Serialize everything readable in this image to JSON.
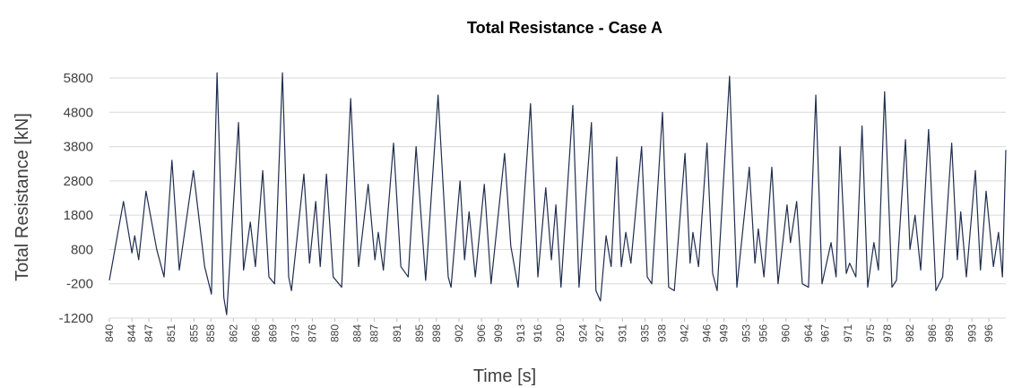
{
  "chart_data": {
    "type": "line",
    "title": "Total Resistance - Case A",
    "x_label": "Time [s]",
    "y_label": "Total Resistance [kN]",
    "grid": true,
    "xlim": [
      840,
      999
    ],
    "ylim": [
      -1200,
      5800
    ],
    "yticks": [
      -1200,
      -200,
      800,
      1800,
      2800,
      3800,
      4800,
      5800
    ],
    "xticks": [
      840,
      844,
      847,
      851,
      855,
      858,
      862,
      866,
      869,
      873,
      876,
      880,
      884,
      887,
      891,
      895,
      898,
      902,
      906,
      909,
      913,
      916,
      920,
      924,
      927,
      931,
      935,
      938,
      942,
      946,
      949,
      953,
      956,
      960,
      964,
      967,
      971,
      975,
      978,
      982,
      986,
      989,
      993,
      996
    ],
    "x": [
      840.0,
      842.5,
      844.0,
      844.5,
      845.2,
      846.5,
      848.4,
      849.7,
      851.1,
      852.4,
      854.9,
      856.9,
      858.1,
      859.1,
      860.3,
      860.8,
      862.9,
      863.8,
      865.0,
      865.9,
      867.2,
      868.3,
      869.3,
      870.7,
      871.8,
      872.3,
      874.5,
      875.5,
      876.6,
      877.4,
      878.5,
      879.7,
      881.2,
      882.8,
      884.2,
      885.9,
      887.1,
      887.7,
      888.6,
      890.4,
      891.7,
      893.0,
      894.4,
      896.1,
      898.3,
      900.1,
      900.6,
      902.2,
      903.0,
      903.8,
      904.9,
      906.5,
      907.7,
      910.1,
      911.2,
      912.5,
      914.7,
      916.0,
      917.4,
      918.4,
      919.2,
      920.1,
      922.2,
      923.3,
      925.5,
      926.3,
      927.1,
      928.1,
      929.0,
      930.0,
      930.8,
      931.6,
      932.5,
      934.4,
      935.4,
      936.2,
      938.1,
      939.2,
      940.2,
      942.1,
      943.0,
      943.5,
      944.5,
      946.0,
      947.0,
      947.8,
      950.0,
      951.3,
      953.5,
      954.5,
      955.1,
      956.1,
      957.5,
      958.6,
      960.2,
      960.8,
      961.9,
      962.9,
      964.0,
      965.3,
      966.4,
      968.0,
      968.9,
      969.6,
      970.7,
      971.3,
      972.4,
      973.5,
      974.5,
      975.6,
      976.4,
      977.5,
      978.8,
      979.6,
      981.2,
      982.0,
      982.9,
      983.9,
      985.3,
      986.6,
      987.8,
      989.4,
      990.4,
      991.0,
      992.0,
      993.6,
      994.5,
      995.5,
      996.8,
      997.7,
      998.4,
      999.0
    ],
    "series": [
      {
        "name": "Total Resistance",
        "color": "#1f2d4e",
        "values": [
          -100,
          2200,
          700,
          1200,
          500,
          2500,
          800,
          0,
          3400,
          200,
          3100,
          300,
          -500,
          5950,
          -600,
          -1100,
          4500,
          200,
          1600,
          300,
          3100,
          0,
          -200,
          5950,
          0,
          -400,
          3000,
          400,
          2200,
          300,
          3000,
          0,
          -300,
          5200,
          300,
          2700,
          500,
          1300,
          200,
          3900,
          300,
          0,
          3800,
          -100,
          5300,
          0,
          -300,
          2800,
          500,
          1900,
          0,
          2700,
          -200,
          3600,
          900,
          -300,
          5050,
          0,
          2600,
          500,
          2100,
          -300,
          5000,
          -300,
          4500,
          -400,
          -700,
          1200,
          300,
          3500,
          300,
          1300,
          400,
          3800,
          0,
          -200,
          4800,
          -300,
          -400,
          3600,
          400,
          1300,
          300,
          3900,
          100,
          -400,
          5850,
          -300,
          3200,
          400,
          1400,
          0,
          3200,
          -200,
          2100,
          1000,
          2200,
          -200,
          -300,
          5300,
          -200,
          1000,
          0,
          3800,
          100,
          400,
          0,
          4400,
          -300,
          1000,
          200,
          5400,
          -300,
          -100,
          4000,
          800,
          1800,
          200,
          4300,
          -400,
          0,
          3900,
          500,
          1900,
          0,
          3100,
          200,
          2500,
          300,
          1300,
          0,
          3700
        ]
      }
    ]
  }
}
